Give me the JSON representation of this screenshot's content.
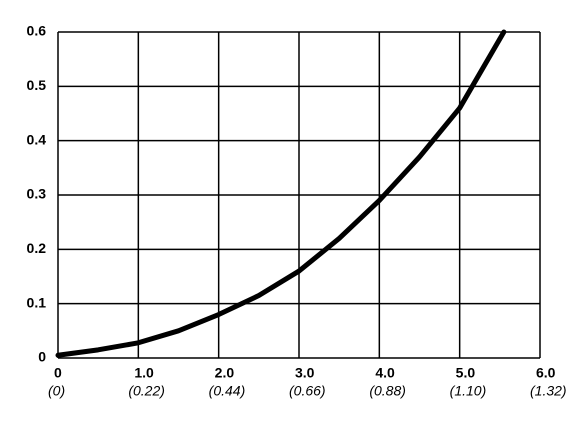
{
  "chart_data": {
    "type": "line",
    "x": [
      0,
      0.5,
      1,
      1.5,
      2,
      2.5,
      3,
      3.5,
      4,
      4.5,
      5,
      5.55
    ],
    "series": [
      {
        "color": "#000000",
        "values": [
          0.005,
          0.015,
          0.028,
          0.05,
          0.08,
          0.115,
          0.16,
          0.22,
          0.29,
          0.37,
          0.46,
          0.6
        ]
      }
    ],
    "xlim": [
      0,
      6
    ],
    "xticks": [
      0,
      {
        "value": 1,
        "label": "1.0"
      },
      {
        "value": 2,
        "label": "2.0"
      },
      {
        "value": 3,
        "label": "3.0"
      },
      {
        "value": 4,
        "label": "4.0"
      },
      {
        "value": 5,
        "label": "5.0"
      },
      {
        "value": 6,
        "label": "6.0"
      }
    ],
    "x2lim": [
      0,
      1.32
    ],
    "x2ticks": [
      {
        "value": 0,
        "label": "(0)"
      },
      {
        "value": 0.22,
        "label": "(0.22)"
      },
      {
        "value": 0.44,
        "label": "(0.44)"
      },
      {
        "value": 0.66,
        "label": "(0.66)"
      },
      {
        "value": 0.88,
        "label": "(0.88)"
      },
      {
        "value": 1.1,
        "label": "(1.10)"
      },
      {
        "value": 1.32,
        "label": "(1.32)"
      }
    ],
    "ylim": [
      0,
      0.6
    ],
    "yticks": [
      0,
      0.1,
      0.2,
      0.3,
      0.4,
      0.5,
      0.6
    ],
    "grid": true
  }
}
